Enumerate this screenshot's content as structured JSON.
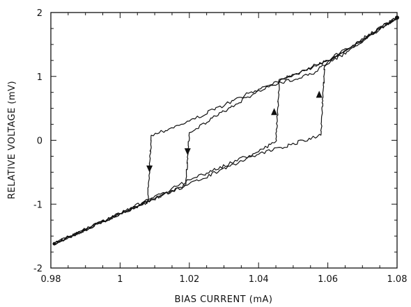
{
  "chart_data": {
    "type": "line",
    "title": "",
    "xlabel": "BIAS CURRENT (mA)",
    "ylabel": "RELATIVE VOLTAGE (mV)",
    "xlim": [
      0.98,
      1.08
    ],
    "ylim": [
      -2,
      2
    ],
    "x_ticks": [
      0.98,
      1.0,
      1.02,
      1.04,
      1.06,
      1.08
    ],
    "x_tick_labels": [
      "0.98",
      "1",
      "1.02",
      "1.04",
      "1.06",
      "1.08"
    ],
    "y_ticks": [
      -2,
      -1,
      0,
      1,
      2
    ],
    "y_tick_labels": [
      "-2",
      "-1",
      "0",
      "1",
      "2"
    ],
    "grid": false,
    "line_color": "#111111",
    "series": [
      {
        "x": [
          0.981,
          1.0,
          1.008,
          1.009,
          1.02,
          1.04,
          1.045,
          1.06,
          1.08
        ],
        "y": [
          -1.62,
          -1.15,
          -0.93,
          0.08,
          0.3,
          0.8,
          0.92,
          1.25,
          1.92
        ]
      },
      {
        "x": [
          1.08,
          1.06,
          1.046,
          1.045,
          1.04,
          1.02,
          1.008,
          1.0,
          0.981
        ],
        "y": [
          1.92,
          1.25,
          0.92,
          -0.02,
          -0.18,
          -0.62,
          -0.95,
          -1.15,
          -1.62
        ]
      },
      {
        "x": [
          0.981,
          1.0,
          1.019,
          1.02,
          1.04,
          1.057,
          1.058,
          1.08
        ],
        "y": [
          -1.62,
          -1.15,
          -0.7,
          0.12,
          0.78,
          1.08,
          1.15,
          1.92
        ]
      },
      {
        "x": [
          1.08,
          1.059,
          1.058,
          1.04,
          1.02,
          1.0,
          0.981
        ],
        "y": [
          1.92,
          1.15,
          0.08,
          -0.22,
          -0.68,
          -1.15,
          -1.62
        ]
      }
    ],
    "annotations": [
      {
        "type": "arrow-down",
        "x": 1.0085,
        "y": -0.45
      },
      {
        "type": "arrow-down",
        "x": 1.0195,
        "y": -0.18
      },
      {
        "type": "arrow-up",
        "x": 1.0445,
        "y": 0.45
      },
      {
        "type": "arrow-up",
        "x": 1.0575,
        "y": 0.72
      }
    ]
  }
}
